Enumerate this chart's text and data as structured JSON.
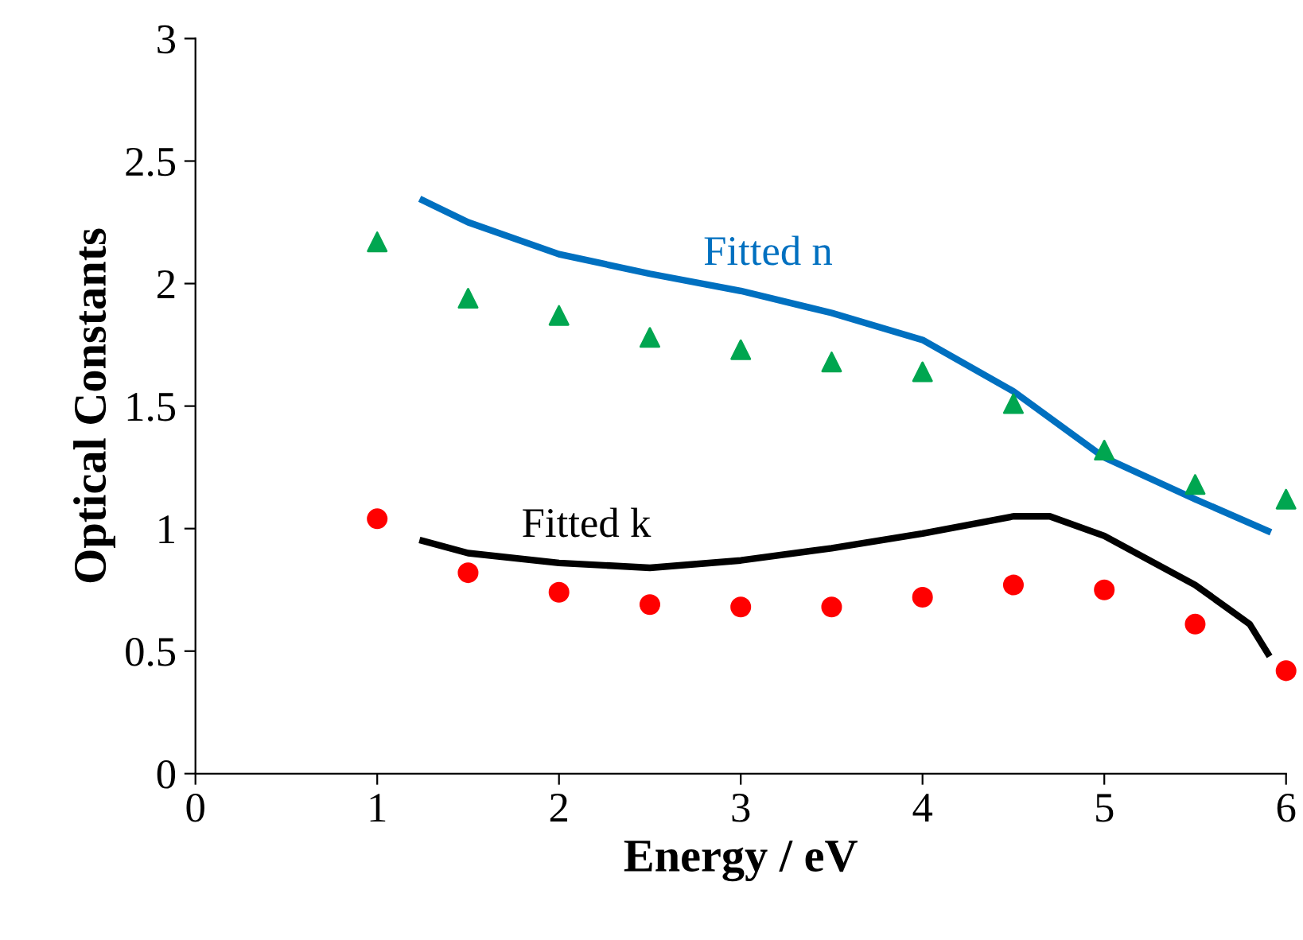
{
  "chart_data": {
    "type": "line",
    "xlabel": "Energy / eV",
    "ylabel": "Optical Constants",
    "xlim": [
      0,
      6
    ],
    "xticks": [
      0,
      1,
      2,
      3,
      4,
      5,
      6
    ],
    "ylim": [
      0,
      3
    ],
    "yticks": [
      0,
      0.5,
      1,
      1.5,
      2,
      2.5,
      3
    ],
    "grid": false,
    "legend": false,
    "series": [
      {
        "type": "scatter",
        "marker": "triangle",
        "color": "#00a650",
        "x": [
          1,
          1.5,
          2,
          2.5,
          3,
          3.5,
          4,
          4.5,
          5,
          5.5,
          6
        ],
        "values": [
          2.17,
          1.94,
          1.87,
          1.78,
          1.73,
          1.68,
          1.64,
          1.51,
          1.32,
          1.18,
          1.12
        ]
      },
      {
        "type": "scatter",
        "marker": "circle",
        "color": "#ff0000",
        "x": [
          1,
          1.5,
          2,
          2.5,
          3,
          3.5,
          4,
          4.5,
          5,
          5.5,
          6
        ],
        "values": [
          1.04,
          0.82,
          0.74,
          0.69,
          0.68,
          0.68,
          0.72,
          0.77,
          0.75,
          0.61,
          0.42
        ]
      },
      {
        "name": "Fitted n",
        "color": "#0070c0",
        "x": [
          1.25,
          1.5,
          2,
          2.5,
          3,
          3.5,
          4,
          4.5,
          5,
          5.5,
          5.9
        ],
        "values": [
          2.34,
          2.25,
          2.12,
          2.04,
          1.97,
          1.88,
          1.77,
          1.56,
          1.29,
          1.12,
          0.99
        ]
      },
      {
        "name": "Fitted k",
        "color": "#000000",
        "x": [
          1.25,
          1.5,
          2,
          2.5,
          3,
          3.5,
          4,
          4.5,
          4.7,
          5,
          5.5,
          5.8,
          5.9
        ],
        "values": [
          0.95,
          0.9,
          0.86,
          0.84,
          0.87,
          0.92,
          0.98,
          1.05,
          1.05,
          0.97,
          0.77,
          0.61,
          0.49
        ]
      }
    ]
  }
}
